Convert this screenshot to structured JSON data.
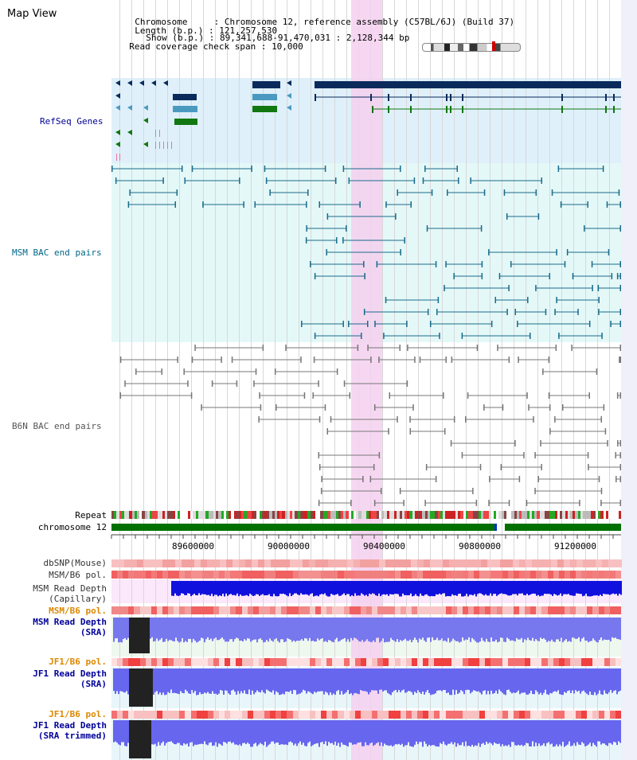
{
  "title": "Map View",
  "header": {
    "chromosome_label": "Chromosome     : ",
    "chromosome_value": "Chromosome 12, reference assembly (C57BL/6J) (Build 37)",
    "length_label": "Length (b.p.) : ",
    "length_value": "121,257,530",
    "show_label": "Show (b.p.) : ",
    "show_value": "89,341,688-91,470,031 : 2,128,344 bp",
    "coverage_label": "Read coverage check span : ",
    "coverage_value": "10,000"
  },
  "tracks": {
    "refseq": "RefSeq Genes",
    "msm_bac": "MSM BAC end pairs",
    "b6n_bac": "B6N BAC end pairs",
    "repeat": "Repeat",
    "chromosome": "chromosome 12",
    "dbsnp": "dbSNP(Mouse)",
    "msm_b6_pol": "MSM/B6 pol.",
    "msm_depth_cap_1": "MSM Read Depth",
    "msm_depth_cap_2": "(Capillary)",
    "msm_b6_pol_2": "MSM/B6 pol.",
    "msm_depth_sra_1": "MSM Read Depth",
    "msm_depth_sra_2": "(SRA)",
    "jf1_b6_pol": "JF1/B6 pol.",
    "jf1_depth_sra_1": "JF1 Read Depth",
    "jf1_depth_sra_2": "(SRA)",
    "jf1_b6_pol_2": "JF1/B6 pol.",
    "jf1_depth_trim_1": "JF1 Read Depth",
    "jf1_depth_trim_2": "(SRA trimmed)"
  },
  "axis": {
    "ticks": [
      "89600000",
      "90000000",
      "90400000",
      "90800000",
      "91200000"
    ]
  },
  "colors": {
    "refseq_label": "#000099",
    "msm_label": "#006688",
    "b6n_label": "#555555",
    "pol_label": "#dd8800",
    "depth_label": "#000099",
    "highlight": "#f5d0ef"
  }
}
